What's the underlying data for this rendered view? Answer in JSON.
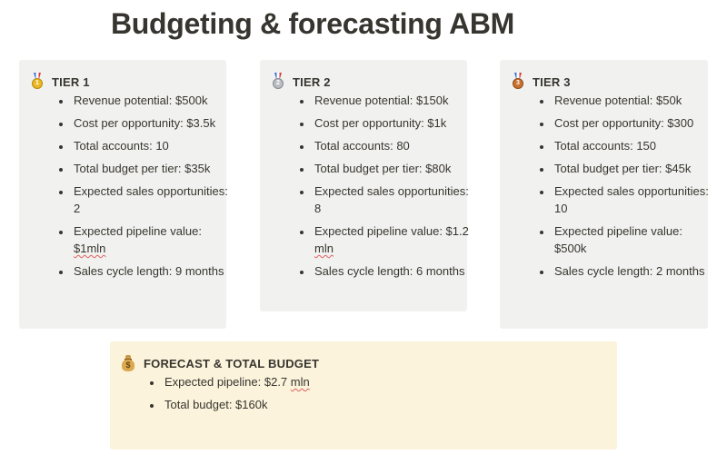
{
  "page": {
    "title": "Budgeting & forecasting ABM"
  },
  "tiers": [
    {
      "icon": "first-place-medal-icon",
      "title": "TIER 1",
      "items": [
        "Revenue potential: $500k",
        "Cost per opportunity: $3.5k",
        "Total accounts: 10",
        "Total budget per tier: $35k",
        "Expected sales opportunities: 2",
        "Expected pipeline value: $1mln",
        "Sales cycle length: 9 months"
      ]
    },
    {
      "icon": "second-place-medal-icon",
      "title": "TIER 2",
      "items": [
        "Revenue potential: $150k",
        "Cost per opportunity: $1k",
        "Total accounts: 80",
        "Total budget per tier: $80k",
        "Expected sales opportunities: 8",
        "Expected pipeline value: $1.2 mln",
        "Sales cycle length: 6 months"
      ]
    },
    {
      "icon": "third-place-medal-icon",
      "title": "TIER 3",
      "items": [
        "Revenue potential: $50k",
        "Cost per opportunity: $300",
        "Total accounts: 150",
        "Total budget per tier: $45k",
        "Expected sales opportunities: 10",
        "Expected pipeline value: $500k",
        "Sales cycle length: 2 months"
      ]
    }
  ],
  "forecast": {
    "icon": "money-bag-icon",
    "title": "FORECAST & TOTAL BUDGET",
    "items": [
      "Expected pipeline: $2.7 mln",
      "Total budget: $160k"
    ]
  },
  "colors": {
    "text": "#37352f",
    "tier_callout_bg": "#f1f1ef",
    "forecast_callout_bg": "#fbf3db"
  }
}
